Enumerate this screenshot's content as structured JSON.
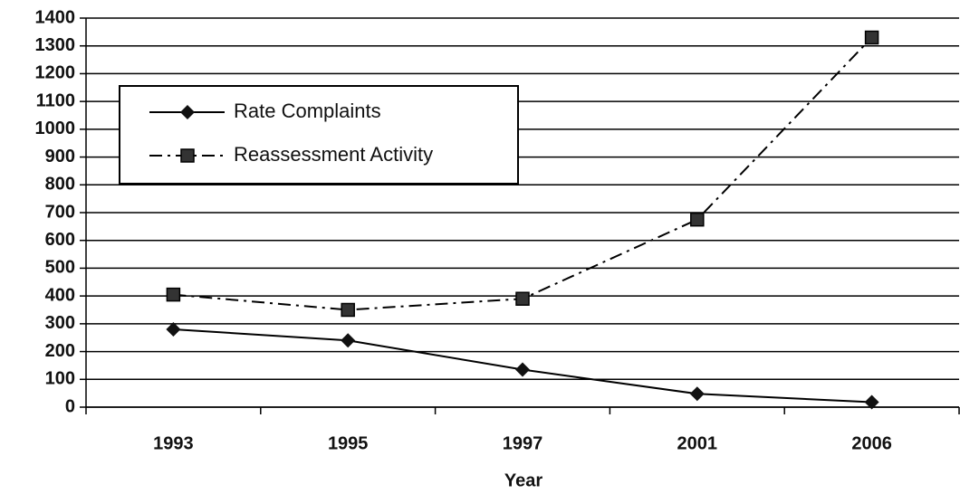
{
  "chart_data": {
    "type": "line",
    "x_label": "Year",
    "categories": [
      "1993",
      "1995",
      "1997",
      "2001",
      "2006"
    ],
    "series": [
      {
        "name": "Rate Complaints",
        "color": "#000000",
        "marker": "diamond",
        "style": "solid",
        "values": [
          280,
          240,
          135,
          48,
          18
        ]
      },
      {
        "name": "Reassessment Activity",
        "color": "#000000",
        "marker": "square",
        "style": "dashdot",
        "values": [
          405,
          350,
          390,
          675,
          1330
        ]
      }
    ],
    "ylim": [
      0,
      1400
    ],
    "yticks": [
      0,
      100,
      200,
      300,
      400,
      500,
      600,
      700,
      800,
      900,
      1000,
      1100,
      1200,
      1300,
      1400
    ],
    "grid": true,
    "legend": "upper left"
  }
}
